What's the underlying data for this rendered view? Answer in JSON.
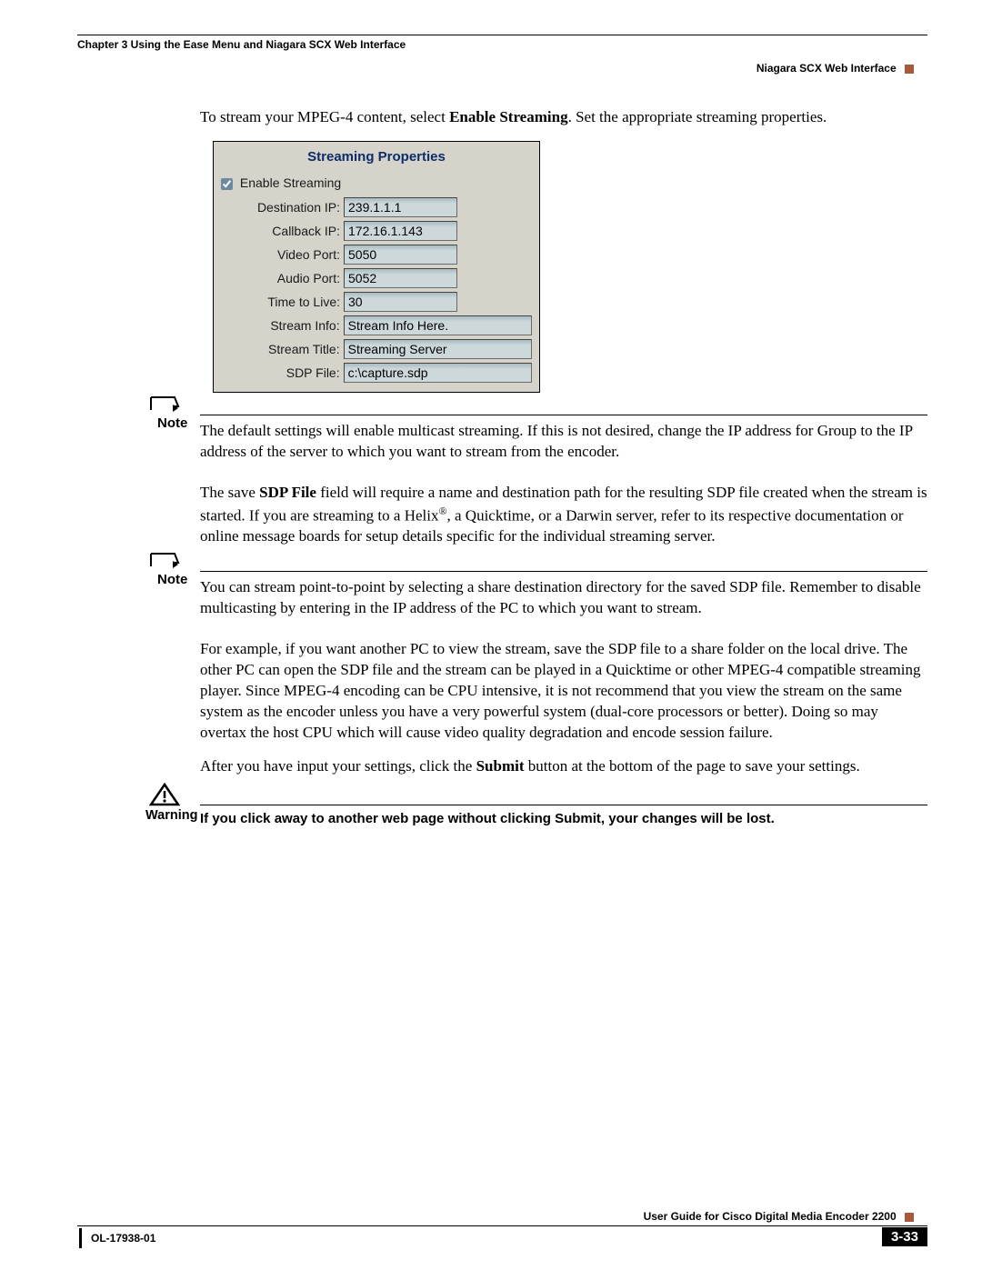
{
  "header": {
    "chapter": "Chapter 3      Using the Ease Menu and Niagara SCX Web Interface",
    "section": "Niagara SCX Web Interface"
  },
  "intro": {
    "prefix": "To stream your MPEG-4 content, select ",
    "bold": "Enable Streaming",
    "suffix": ". Set the appropriate streaming properties."
  },
  "screenshot": {
    "title": "Streaming Properties",
    "enable_label": "Enable Streaming",
    "enable_checked": true,
    "fields": [
      {
        "label": "Destination IP:",
        "value": "239.1.1.1",
        "long": false
      },
      {
        "label": "Callback IP:",
        "value": "172.16.1.143",
        "long": false
      },
      {
        "label": "Video Port:",
        "value": "5050",
        "long": false
      },
      {
        "label": "Audio Port:",
        "value": "5052",
        "long": false
      },
      {
        "label": "Time to Live:",
        "value": "30",
        "long": false
      },
      {
        "label": "Stream Info:",
        "value": "Stream Info Here.",
        "long": true
      },
      {
        "label": "Stream Title:",
        "value": "Streaming Server",
        "long": true
      },
      {
        "label": "SDP File:",
        "value": "c:\\capture.sdp",
        "long": true
      }
    ],
    "label_width": 135
  },
  "note1": {
    "label": "Note",
    "text": "The default settings will enable multicast streaming. If this is not desired, change the IP address for Group to the IP address of the server to which you want to stream from the encoder."
  },
  "para_sdp": {
    "prefix": "The save ",
    "bold": "SDP File",
    "rest1": " field will require a name and destination path for the resulting SDP file created when the stream is started. If you are streaming to a Helix",
    "reg": "®",
    "rest2": ", a Quicktime, or a Darwin server, refer to its respective documentation or online message boards for setup details specific for the individual streaming server."
  },
  "note2": {
    "label": "Note",
    "text": "You can stream point-to-point by selecting a share destination directory for the saved SDP file. Remember to disable multicasting by entering in the IP address of the PC to which you want to stream."
  },
  "para_example": "For example, if you want another PC to view the stream, save the SDP file to a share folder on the local drive. The other PC can open the SDP file and the stream can be played in a Quicktime or other MPEG-4 compatible streaming player. Since MPEG-4 encoding can be CPU intensive, it is not recommend that you view the stream on the same system as the encoder unless you have a very powerful system (dual-core processors or better). Doing so may overtax the host CPU which will cause video quality degradation and encode session failure.",
  "para_submit": {
    "prefix": "After you have input your settings, click the ",
    "bold": "Submit",
    "suffix": " button at the bottom of the page to save your settings."
  },
  "warning": {
    "label": "Warning",
    "text": "If you click away to another web page without clicking Submit, your changes will be lost."
  },
  "footer": {
    "guide": "User Guide for Cisco Digital Media Encoder 2200",
    "docnum": "OL-17938-01",
    "pagenum": "3-33"
  },
  "colors": {
    "accent": "#a75a3b"
  }
}
